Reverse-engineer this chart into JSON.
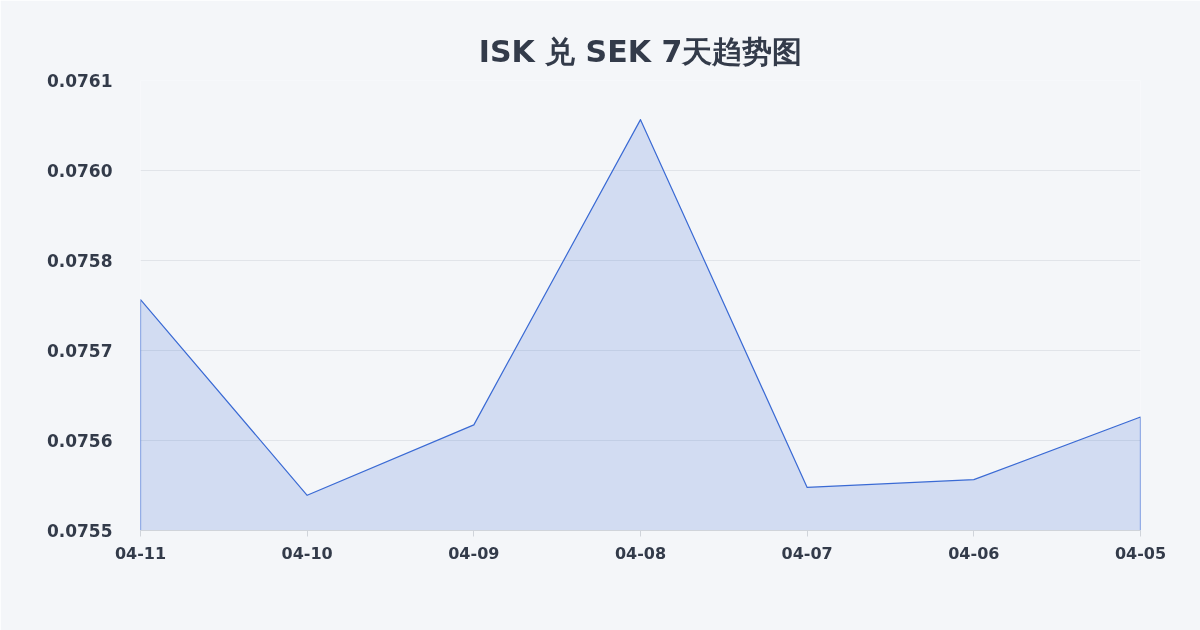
{
  "chart_data": {
    "type": "area",
    "title": "ISK 兑 SEK 7天趋势图",
    "categories": [
      "04-11",
      "04-10",
      "04-09",
      "04-08",
      "04-07",
      "04-06",
      "04-05"
    ],
    "series": [
      {
        "color": "#3a6ad4",
        "values": [
          0.07579,
          0.07554,
          0.07563,
          0.07602,
          0.07555,
          0.07556,
          0.07564
        ]
      }
    ],
    "ylim": [
      0.075495,
      0.07607
    ],
    "yticks": [
      {
        "value": 0.075495,
        "label": "0.0755"
      },
      {
        "value": 0.07561,
        "label": "0.0756"
      },
      {
        "value": 0.075725,
        "label": "0.0757"
      },
      {
        "value": 0.07584,
        "label": "0.0758"
      },
      {
        "value": 0.075955,
        "label": "0.0760"
      },
      {
        "value": 0.07607,
        "label": "0.0761"
      }
    ],
    "grid": "y"
  }
}
